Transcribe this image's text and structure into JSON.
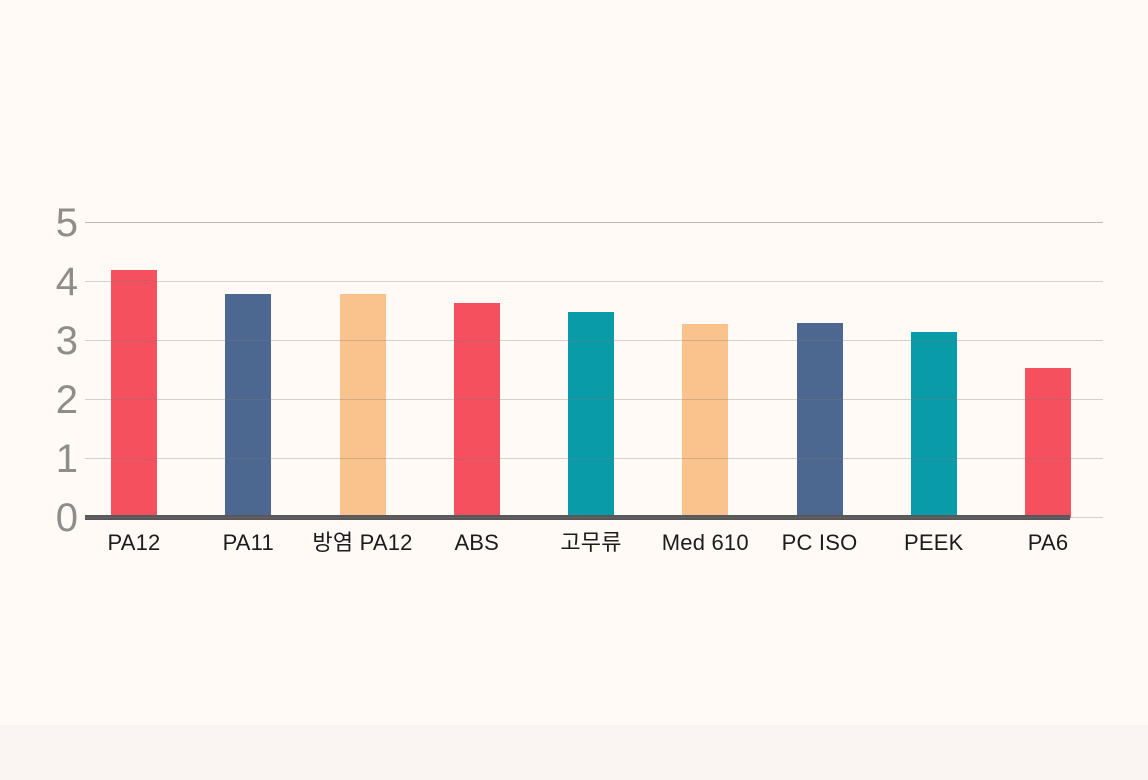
{
  "page": {
    "background_color": "#FFFAF5",
    "footer_band_color": "#FAF5F3"
  },
  "chart_data": {
    "type": "bar",
    "title": "",
    "xlabel": "",
    "ylabel": "",
    "categories": [
      "PA12",
      "PA11",
      "방염 PA12",
      "ABS",
      "고무류",
      "Med 610",
      "PC ISO",
      "PEEK",
      "PA6"
    ],
    "values": [
      4.2,
      3.8,
      3.8,
      3.65,
      3.5,
      3.28,
      3.3,
      3.15,
      2.55
    ],
    "bar_colors": [
      "#F5505E",
      "#4C6890",
      "#FAC28C",
      "#F5505E",
      "#0A9BA9",
      "#FAC28C",
      "#4C6890",
      "#0A9BA9",
      "#F5505E"
    ],
    "palette": {
      "red": "#F5505E",
      "blue": "#4C6890",
      "orange": "#FAC28C",
      "teal": "#0A9BA9"
    },
    "ylim": [
      0,
      5
    ],
    "yticks": [
      0,
      1,
      2,
      3,
      4,
      5
    ],
    "grid": true,
    "gridlines_over_bars": true,
    "legend": false,
    "axis_line_color": "#58585A",
    "gridline_color": "rgba(128,122,117,0.32)",
    "ytick_color": "#8F8D8B",
    "xtick_color": "#1C1C1C"
  }
}
